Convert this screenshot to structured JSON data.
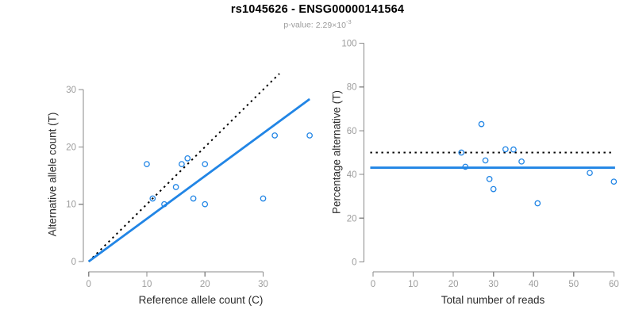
{
  "header": {
    "title": "rs1045626 - ENSG00000141564",
    "pvalue_label": "p-value:",
    "pvalue_value": "2.29×10",
    "pvalue_exponent": "-3"
  },
  "colors": {
    "accent_blue": "#2185E5",
    "dotted_black": "#000000",
    "axis_gray": "#8a8a8a",
    "tick_label_gray": "#9c9c9c",
    "axis_title_dark": "#2b2b2b",
    "subtitle_gray": "#9c9c9c"
  },
  "chart_data": [
    {
      "type": "scatter",
      "name": "allele-counts",
      "xlabel": "Reference allele count (C)",
      "ylabel": "Alternative allele count (T)",
      "xticks": [
        0,
        10,
        20,
        30
      ],
      "yticks": [
        0,
        10,
        20,
        30
      ],
      "xlim": [
        0,
        38
      ],
      "ylim": [
        0,
        32
      ],
      "grid": false,
      "legend": "none",
      "points": [
        [
          10,
          17
        ],
        [
          16,
          17
        ],
        [
          17,
          18
        ],
        [
          20,
          17
        ],
        [
          32,
          22
        ],
        [
          38,
          22
        ],
        [
          15,
          13
        ],
        [
          11,
          11
        ],
        [
          13,
          10
        ],
        [
          18,
          11
        ],
        [
          20,
          10
        ],
        [
          30,
          11
        ]
      ],
      "lines": [
        {
          "name": "identity-line",
          "style": "dotted",
          "color": "black",
          "from": [
            0,
            0
          ],
          "to": [
            32.8,
            32.8
          ]
        },
        {
          "name": "fit-line",
          "style": "solid",
          "color": "blue",
          "from": [
            0,
            0
          ],
          "to": [
            38,
            28.35
          ]
        }
      ]
    },
    {
      "type": "scatter",
      "name": "percentage-vs-coverage",
      "xlabel": "Total number of reads",
      "ylabel": "Percentage alternative (T)",
      "xticks": [
        0,
        10,
        20,
        30,
        40,
        50,
        60
      ],
      "yticks": [
        0,
        20,
        40,
        60,
        80,
        100
      ],
      "xlim": [
        0,
        60
      ],
      "ylim": [
        0,
        100
      ],
      "grid": false,
      "legend": "none",
      "points": [
        [
          27,
          63.0
        ],
        [
          33,
          51.5
        ],
        [
          35,
          51.4
        ],
        [
          37,
          45.9
        ],
        [
          54,
          40.7
        ],
        [
          60,
          36.7
        ],
        [
          28,
          46.4
        ],
        [
          22,
          50.0
        ],
        [
          23,
          43.5
        ],
        [
          29,
          37.9
        ],
        [
          30,
          33.3
        ],
        [
          41,
          26.8
        ]
      ],
      "lines": [
        {
          "name": "expected-50pct-line",
          "style": "dotted",
          "color": "black",
          "from": [
            -0.7,
            50
          ],
          "to": [
            59.3,
            50
          ]
        },
        {
          "name": "fitted-43pct-line",
          "style": "solid",
          "color": "blue",
          "from": [
            -0.7,
            43.1
          ],
          "to": [
            60.3,
            43.1
          ]
        }
      ]
    }
  ]
}
